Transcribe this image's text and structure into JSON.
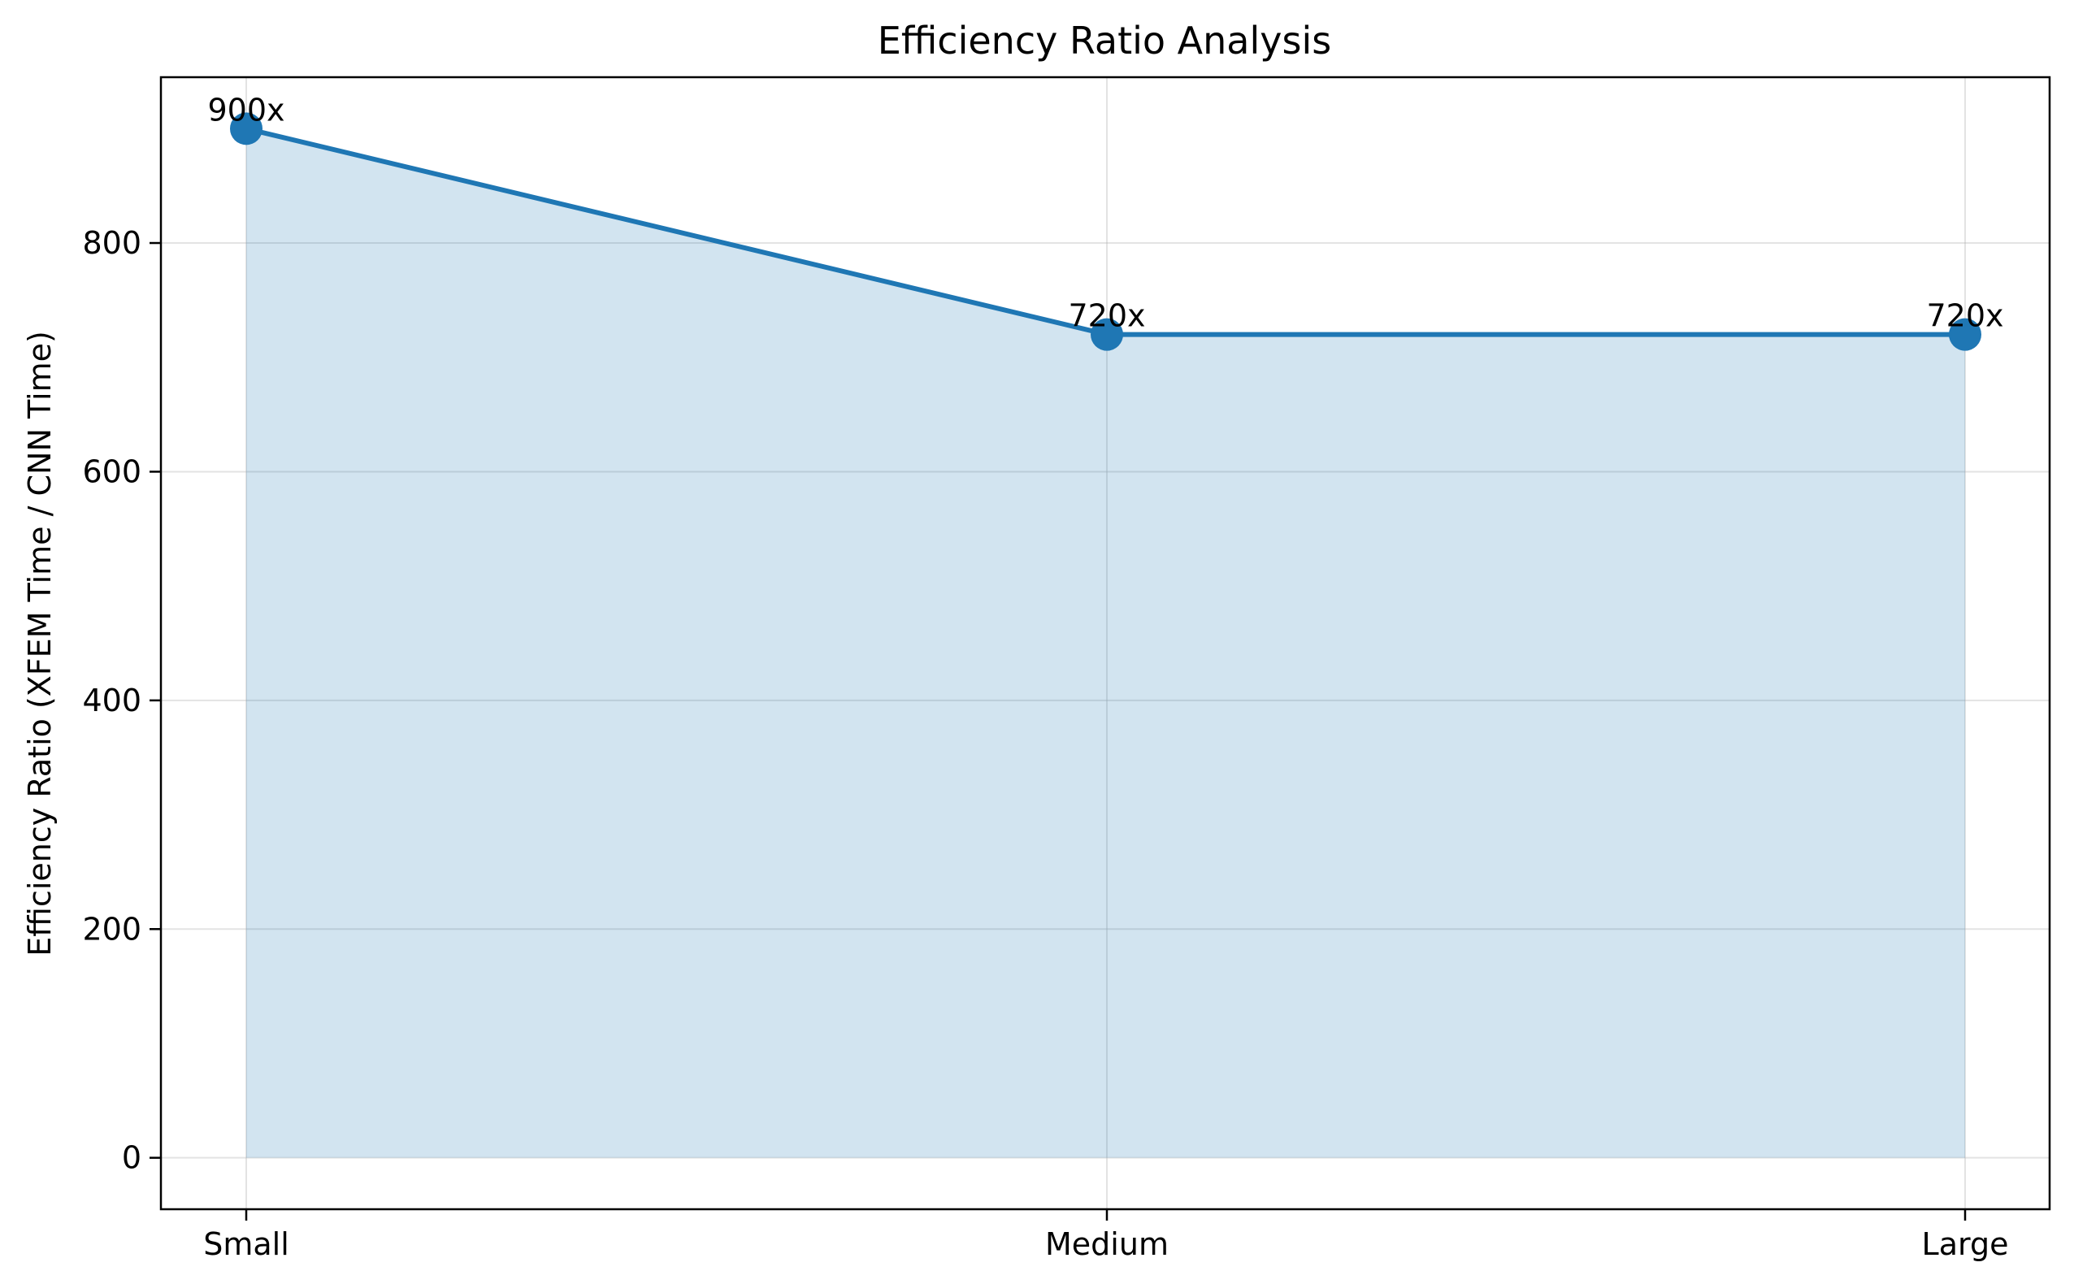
{
  "chart_data": {
    "type": "line",
    "title": "Efficiency Ratio Analysis",
    "xlabel": "",
    "ylabel": "Efficiency Ratio (XFEM Time / CNN Time)",
    "categories": [
      "Small",
      "Medium",
      "Large"
    ],
    "series": [
      {
        "values": [
          900,
          720,
          720
        ],
        "color": "#1f77b4",
        "fill": true,
        "marker": "circle"
      }
    ],
    "data_labels": [
      "900x",
      "720x",
      "720x"
    ],
    "ylim": [
      -45,
      945
    ],
    "yticks": [
      0,
      200,
      400,
      600,
      800
    ],
    "grid": true,
    "legend": "none"
  }
}
